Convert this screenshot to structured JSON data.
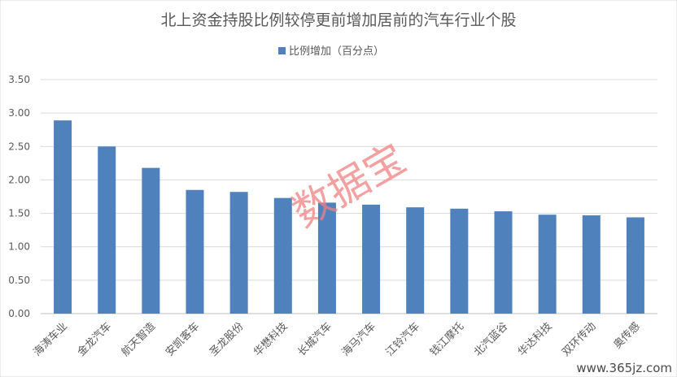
{
  "chart_data": {
    "type": "bar",
    "title": "北上资金持股比例较停更前增加居前的汽车行业个股",
    "legend_position": "top",
    "grid": true,
    "ylim": [
      0,
      3.5
    ],
    "yticks": [
      "0.00",
      "0.50",
      "1.00",
      "1.50",
      "2.00",
      "2.50",
      "3.00",
      "3.50"
    ],
    "categories": [
      "海涛车业",
      "金龙汽车",
      "航天智造",
      "安凯客车",
      "圣龙股份",
      "华懋科技",
      "长城汽车",
      "海马汽车",
      "江铃汽车",
      "钱江摩托",
      "北汽蓝谷",
      "华达科技",
      "双环传动",
      "奥传感"
    ],
    "series": [
      {
        "name": "比例增加（百分点）",
        "color": "#4f81bd",
        "values": [
          2.89,
          2.5,
          2.18,
          1.85,
          1.82,
          1.73,
          1.66,
          1.63,
          1.59,
          1.57,
          1.53,
          1.48,
          1.47,
          1.44
        ]
      }
    ]
  },
  "watermark": {
    "text": "数据宝",
    "color": "#f08080"
  },
  "site_watermark": {
    "text": "www.365jz.com"
  }
}
